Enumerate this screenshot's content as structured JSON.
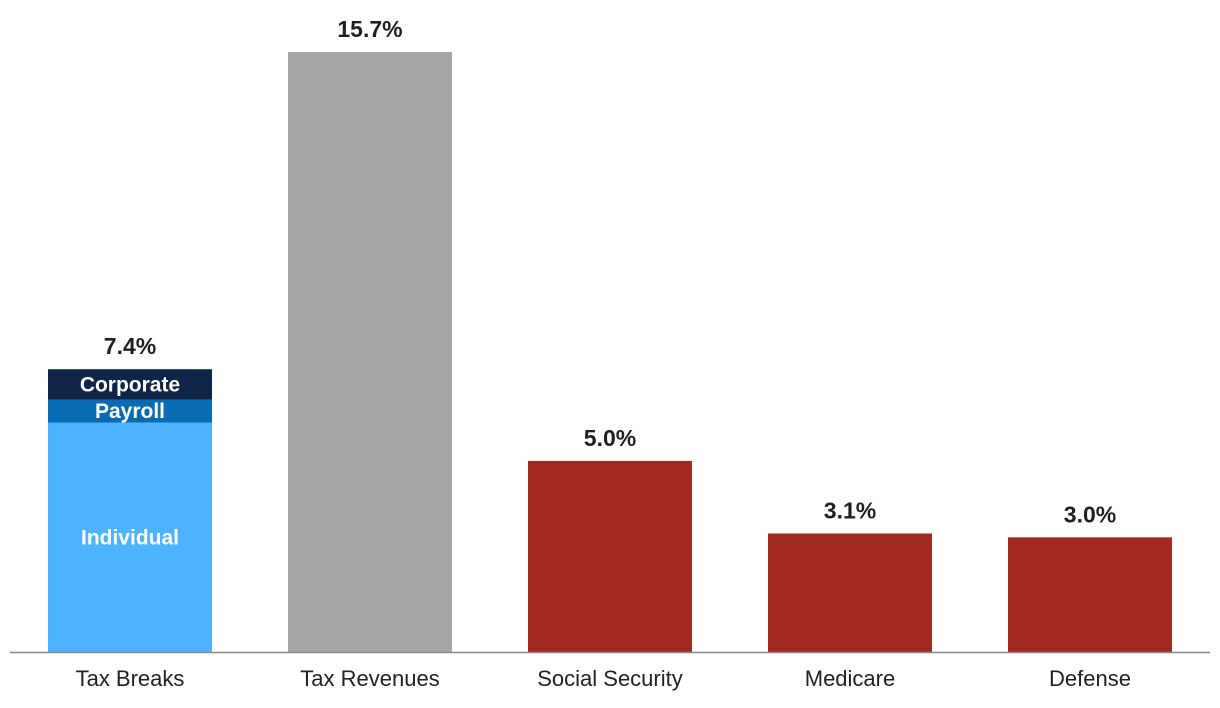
{
  "chart_data": {
    "type": "bar",
    "title": "",
    "xlabel": "",
    "ylabel": "",
    "ylim": [
      0,
      15.7
    ],
    "grid": false,
    "categories": [
      "Tax Breaks",
      "Tax Revenues",
      "Social Security",
      "Medicare",
      "Defense"
    ],
    "values": [
      7.4,
      15.7,
      5.0,
      3.1,
      3.0
    ],
    "value_labels": [
      "7.4%",
      "15.7%",
      "5.0%",
      "3.1%",
      "3.0%"
    ],
    "colors": [
      "#4db2ff",
      "#a6a6a6",
      "#a32a22",
      "#a32a22",
      "#a32a22"
    ],
    "stacked_bar": {
      "category": "Tax Breaks",
      "segments": [
        {
          "name": "Individual",
          "value": 6.0,
          "color": "#4db2ff"
        },
        {
          "name": "Payroll",
          "value": 0.6,
          "color": "#0a6bb5"
        },
        {
          "name": "Corporate",
          "value": 0.8,
          "color": "#0f2548"
        }
      ]
    },
    "axis_color": "#888888"
  }
}
